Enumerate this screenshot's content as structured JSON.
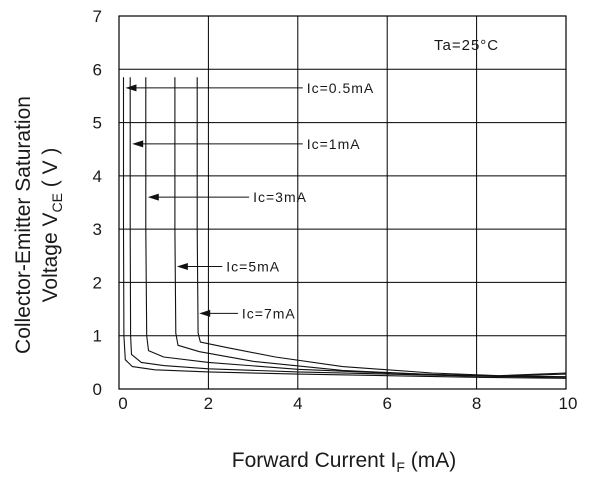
{
  "chart_data": {
    "type": "line",
    "xlabel": {
      "main": "Forward Current I",
      "sub": "F",
      "unit": " (mA)"
    },
    "ylabel": {
      "line1": "Collector-Emitter Saturation",
      "line2_main": "Voltage V",
      "line2_sub": "CE",
      "line2_unit": " ( V )"
    },
    "xlim": [
      0,
      10
    ],
    "ylim": [
      0,
      7
    ],
    "x_ticks": [
      "0",
      "2",
      "4",
      "6",
      "8",
      "10"
    ],
    "y_ticks": [
      "0",
      "1",
      "2",
      "3",
      "4",
      "5",
      "6",
      "7"
    ],
    "grid": true,
    "condition": "Ta=25°C",
    "series": [
      {
        "name": "Ic=0.5mA",
        "points": [
          [
            0.1,
            5.85
          ],
          [
            0.1,
            3.0
          ],
          [
            0.11,
            1.0
          ],
          [
            0.14,
            0.55
          ],
          [
            0.3,
            0.42
          ],
          [
            0.8,
            0.36
          ],
          [
            2,
            0.32
          ],
          [
            4,
            0.28
          ],
          [
            6,
            0.25
          ],
          [
            8,
            0.22
          ],
          [
            10,
            0.2
          ]
        ]
      },
      {
        "name": "Ic=1mA",
        "points": [
          [
            0.25,
            5.85
          ],
          [
            0.25,
            3.0
          ],
          [
            0.26,
            1.0
          ],
          [
            0.28,
            0.65
          ],
          [
            0.5,
            0.5
          ],
          [
            1,
            0.44
          ],
          [
            2,
            0.38
          ],
          [
            4,
            0.32
          ],
          [
            6,
            0.28
          ],
          [
            8,
            0.24
          ],
          [
            10,
            0.22
          ]
        ]
      },
      {
        "name": "Ic=3mA",
        "points": [
          [
            0.6,
            5.85
          ],
          [
            0.6,
            3.0
          ],
          [
            0.62,
            1.0
          ],
          [
            0.66,
            0.72
          ],
          [
            1,
            0.6
          ],
          [
            2,
            0.5
          ],
          [
            4,
            0.37
          ],
          [
            6,
            0.3
          ],
          [
            8,
            0.25
          ],
          [
            10,
            0.23
          ]
        ]
      },
      {
        "name": "Ic=5mA",
        "points": [
          [
            1.25,
            5.85
          ],
          [
            1.25,
            3.0
          ],
          [
            1.27,
            1.05
          ],
          [
            1.32,
            0.82
          ],
          [
            1.8,
            0.7
          ],
          [
            3,
            0.52
          ],
          [
            5,
            0.35
          ],
          [
            7,
            0.27
          ],
          [
            8.5,
            0.24
          ],
          [
            10,
            0.28
          ]
        ]
      },
      {
        "name": "Ic=7mA",
        "points": [
          [
            1.75,
            5.85
          ],
          [
            1.75,
            3.0
          ],
          [
            1.77,
            1.05
          ],
          [
            1.82,
            0.88
          ],
          [
            2.4,
            0.78
          ],
          [
            3.5,
            0.6
          ],
          [
            5,
            0.42
          ],
          [
            7,
            0.3
          ],
          [
            8.5,
            0.25
          ],
          [
            10,
            0.3
          ]
        ]
      }
    ],
    "annotations": [
      {
        "label": "Ic=0.5mA",
        "series": 0,
        "text_x": 4.2,
        "text_y": 5.65,
        "arrow_x": 0.1,
        "arrow_y": 5.65
      },
      {
        "label": "Ic=1mA",
        "series": 1,
        "text_x": 4.2,
        "text_y": 4.6,
        "arrow_x": 0.25,
        "arrow_y": 4.6
      },
      {
        "label": "Ic=3mA",
        "series": 2,
        "text_x": 3.0,
        "text_y": 3.6,
        "arrow_x": 0.6,
        "arrow_y": 3.6
      },
      {
        "label": "Ic=5mA",
        "series": 3,
        "text_x": 2.4,
        "text_y": 2.3,
        "arrow_x": 1.25,
        "arrow_y": 2.3
      },
      {
        "label": "Ic=7mA",
        "series": 4,
        "text_x": 2.75,
        "text_y": 1.42,
        "arrow_x": 1.75,
        "arrow_y": 1.42
      }
    ]
  }
}
